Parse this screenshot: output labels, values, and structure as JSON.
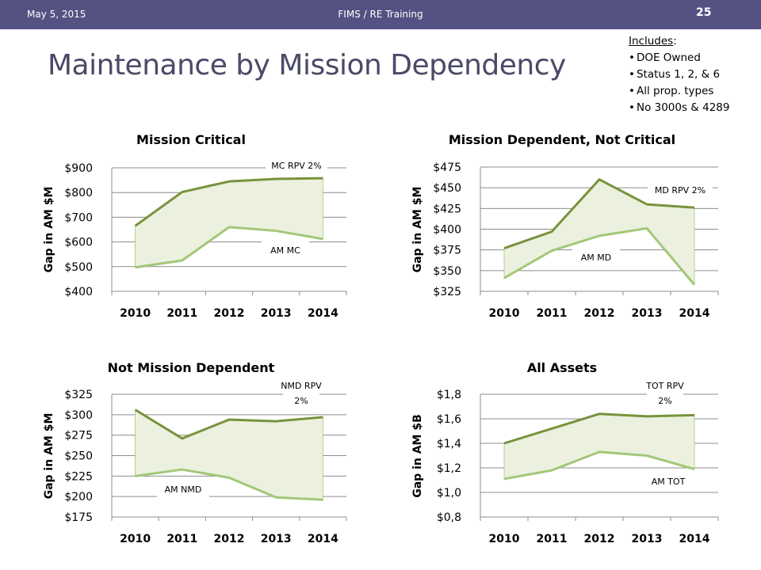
{
  "header": {
    "date": "May 5, 2015",
    "center": "FIMS / RE Training",
    "slide_number": "25"
  },
  "title": "Maintenance by Mission Dependency",
  "includes": {
    "heading": "Includes",
    "heading_suffix": ":",
    "items": [
      "DOE Owned",
      "Status 1, 2, & 6",
      "All prop. types",
      "No 3000s & 4289"
    ]
  },
  "colors": {
    "header_bg": "#545283",
    "title": "#4a4a68",
    "rpv_line": "#77933c",
    "am_line": "#a3c779",
    "fill": "#ebf1de"
  },
  "chart_data": [
    {
      "type": "area",
      "title": "Mission Critical",
      "ylabel": "Gap in AM $M",
      "categories": [
        "2010",
        "2011",
        "2012",
        "2013",
        "2014"
      ],
      "yticks": [
        "$400",
        "$500",
        "$600",
        "$700",
        "$800",
        "$900"
      ],
      "ylim": [
        400,
        900
      ],
      "series": [
        {
          "name": "MC RPV 2%",
          "values": [
            665,
            802,
            845,
            855,
            858
          ]
        },
        {
          "name": "AM MC",
          "values": [
            497,
            525,
            660,
            645,
            612
          ]
        }
      ]
    },
    {
      "type": "area",
      "title": "Mission Dependent, Not Critical",
      "ylabel": "Gap in AM $M",
      "categories": [
        "2010",
        "2011",
        "2012",
        "2013",
        "2014"
      ],
      "yticks": [
        "$325",
        "$350",
        "$375",
        "$400",
        "$425",
        "$450",
        "$475"
      ],
      "ylim": [
        325,
        475
      ],
      "series": [
        {
          "name": "MD RPV 2%",
          "values": [
            377,
            397,
            460,
            430,
            426
          ]
        },
        {
          "name": "AM MD",
          "values": [
            341,
            374,
            392,
            401,
            333
          ]
        }
      ]
    },
    {
      "type": "area",
      "title": "Not Mission Dependent",
      "ylabel": "Gap in AM $M",
      "categories": [
        "2010",
        "2011",
        "2012",
        "2013",
        "2014"
      ],
      "yticks": [
        "$175",
        "$200",
        "$225",
        "$250",
        "$275",
        "$300",
        "$325"
      ],
      "ylim": [
        175,
        325
      ],
      "series": [
        {
          "name": "NMD RPV 2%",
          "values": [
            306,
            271,
            294,
            292,
            297
          ]
        },
        {
          "name": "AM NMD",
          "values": [
            225,
            233,
            223,
            199,
            196
          ]
        }
      ]
    },
    {
      "type": "area",
      "title": "All Assets",
      "ylabel": "Gap in AM $B",
      "categories": [
        "2010",
        "2011",
        "2012",
        "2013",
        "2014"
      ],
      "yticks": [
        "$0,8",
        "$1,0",
        "$1,2",
        "$1,4",
        "$1,6",
        "$1,8"
      ],
      "ylim": [
        0.8,
        1.8
      ],
      "series": [
        {
          "name": "TOT RPV 2%",
          "values": [
            1.4,
            1.52,
            1.64,
            1.62,
            1.63
          ]
        },
        {
          "name": "AM TOT",
          "values": [
            1.11,
            1.18,
            1.33,
            1.3,
            1.19
          ]
        }
      ]
    }
  ]
}
